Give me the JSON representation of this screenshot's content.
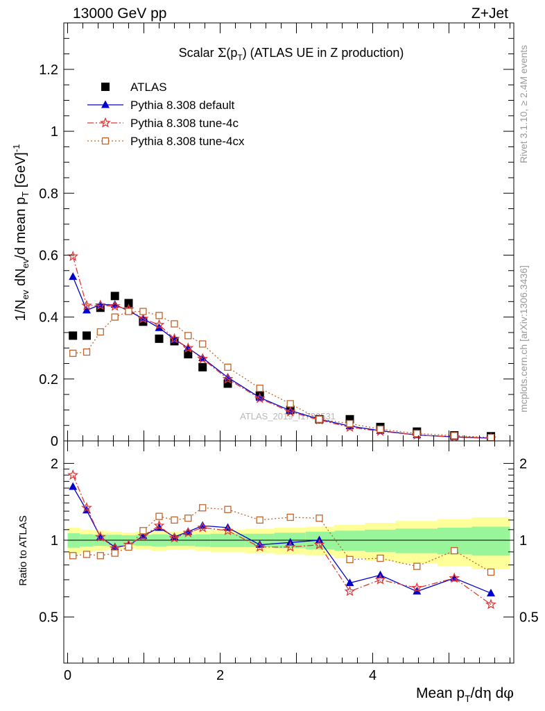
{
  "header": {
    "left": "13000 GeV pp",
    "right": "Z+Jet",
    "side_rivet": "Rivet 3.1.10, ≥ 2.4M events",
    "side_mcplots": "mcplots.cern.ch [arXiv:1306.3436]",
    "watermark": "ATLAS_2019_I1736531"
  },
  "colors": {
    "atlas": "#000000",
    "default": "#0000cc",
    "tune4c": "#e03838",
    "tune4cx": "#c0642a",
    "band_inner": "#99f599",
    "band_outer": "#ffff99"
  },
  "chart_data": [
    {
      "type": "line",
      "title": "Scalar Σ(p_T) (ATLAS UE in Z production)",
      "ylabel": "1/N_ev dN_ev/d mean p_T [GeV]^-1",
      "xlim": [
        -0.05,
        5.85
      ],
      "ylim": [
        0,
        1.35
      ],
      "yticks": [
        0,
        0.2,
        0.4,
        0.6,
        0.8,
        1,
        1.2
      ],
      "ytick_labels": [
        "0",
        "0.2",
        "0.4",
        "0.6",
        "0.8",
        "1",
        "1.2"
      ],
      "legend_position": "top-left",
      "x": [
        0.07,
        0.25,
        0.43,
        0.62,
        0.8,
        0.99,
        1.2,
        1.4,
        1.58,
        1.77,
        2.1,
        2.52,
        2.92,
        3.3,
        3.7,
        4.1,
        4.58,
        5.07,
        5.55
      ],
      "series": [
        {
          "name": "ATLAS",
          "marker": "square",
          "values": [
            0.34,
            0.34,
            0.43,
            0.468,
            0.445,
            0.385,
            0.33,
            0.322,
            0.28,
            0.238,
            0.185,
            0.147,
            0.1,
            0.07,
            0.07,
            0.045,
            0.03,
            0.018,
            0.015
          ]
        },
        {
          "name": "Pythia 8.308 default",
          "marker": "triangle",
          "values": [
            0.53,
            0.422,
            0.44,
            0.44,
            0.42,
            0.395,
            0.365,
            0.328,
            0.3,
            0.268,
            0.205,
            0.14,
            0.098,
            0.07,
            0.048,
            0.033,
            0.019,
            0.013,
            0.009
          ]
        },
        {
          "name": "Pythia 8.308 tune-4c",
          "marker": "star",
          "values": [
            0.596,
            0.437,
            0.438,
            0.435,
            0.425,
            0.395,
            0.375,
            0.33,
            0.3,
            0.265,
            0.2,
            0.137,
            0.094,
            0.068,
            0.044,
            0.031,
            0.019,
            0.012,
            0.008
          ]
        },
        {
          "name": "Pythia 8.308 tune-4cx",
          "marker": "open-square",
          "values": [
            0.283,
            0.287,
            0.352,
            0.4,
            0.418,
            0.418,
            0.405,
            0.378,
            0.34,
            0.313,
            0.238,
            0.17,
            0.12,
            0.07,
            0.056,
            0.038,
            0.024,
            0.017,
            0.011
          ]
        }
      ]
    },
    {
      "type": "line",
      "ylabel": "Ratio to ATLAS",
      "xlabel": "Mean p_T/dη dφ",
      "xlim": [
        -0.05,
        5.85
      ],
      "ylim": [
        0.33,
        2.45
      ],
      "xticks": [
        0,
        2,
        4
      ],
      "xtick_labels": [
        "0",
        "2",
        "4"
      ],
      "yticks": [
        0.5,
        1,
        2
      ],
      "ytick_labels": [
        "0.5",
        "1",
        "2"
      ],
      "x": [
        0.07,
        0.25,
        0.43,
        0.62,
        0.8,
        0.99,
        1.2,
        1.4,
        1.58,
        1.77,
        2.1,
        2.52,
        2.92,
        3.3,
        3.7,
        4.1,
        4.58,
        5.07,
        5.55
      ],
      "bin_edges": [
        0,
        0.16,
        0.34,
        0.52,
        0.71,
        0.89,
        1.1,
        1.3,
        1.49,
        1.67,
        1.87,
        2.33,
        2.71,
        3.12,
        3.5,
        3.9,
        4.3,
        4.85,
        5.3,
        5.8
      ],
      "band_inner": [
        0.065,
        0.055,
        0.05,
        0.05,
        0.045,
        0.05,
        0.055,
        0.05,
        0.05,
        0.055,
        0.06,
        0.06,
        0.07,
        0.08,
        0.09,
        0.1,
        0.11,
        0.12,
        0.13
      ],
      "band_outer": [
        0.12,
        0.1,
        0.09,
        0.08,
        0.07,
        0.08,
        0.09,
        0.08,
        0.08,
        0.09,
        0.1,
        0.11,
        0.12,
        0.13,
        0.15,
        0.17,
        0.19,
        0.21,
        0.23
      ],
      "series": [
        {
          "name": "Pythia 8.308 default",
          "values": [
            1.62,
            1.31,
            1.03,
            0.94,
            0.955,
            1.04,
            1.12,
            1.03,
            1.08,
            1.14,
            1.12,
            0.96,
            0.98,
            1.0,
            0.68,
            0.73,
            0.63,
            0.71,
            0.62
          ]
        },
        {
          "name": "Pythia 8.308 tune-4c",
          "values": [
            1.8,
            1.34,
            1.03,
            0.93,
            0.96,
            1.04,
            1.14,
            1.02,
            1.07,
            1.12,
            1.09,
            0.94,
            0.94,
            0.96,
            0.63,
            0.7,
            0.65,
            0.71,
            0.56
          ]
        },
        {
          "name": "Pythia 8.308 tune-4cx",
          "values": [
            0.87,
            0.88,
            0.87,
            0.89,
            0.94,
            1.09,
            1.24,
            1.2,
            1.22,
            1.34,
            1.32,
            1.2,
            1.23,
            1.22,
            0.84,
            0.85,
            0.79,
            0.91,
            0.75
          ]
        }
      ]
    }
  ]
}
